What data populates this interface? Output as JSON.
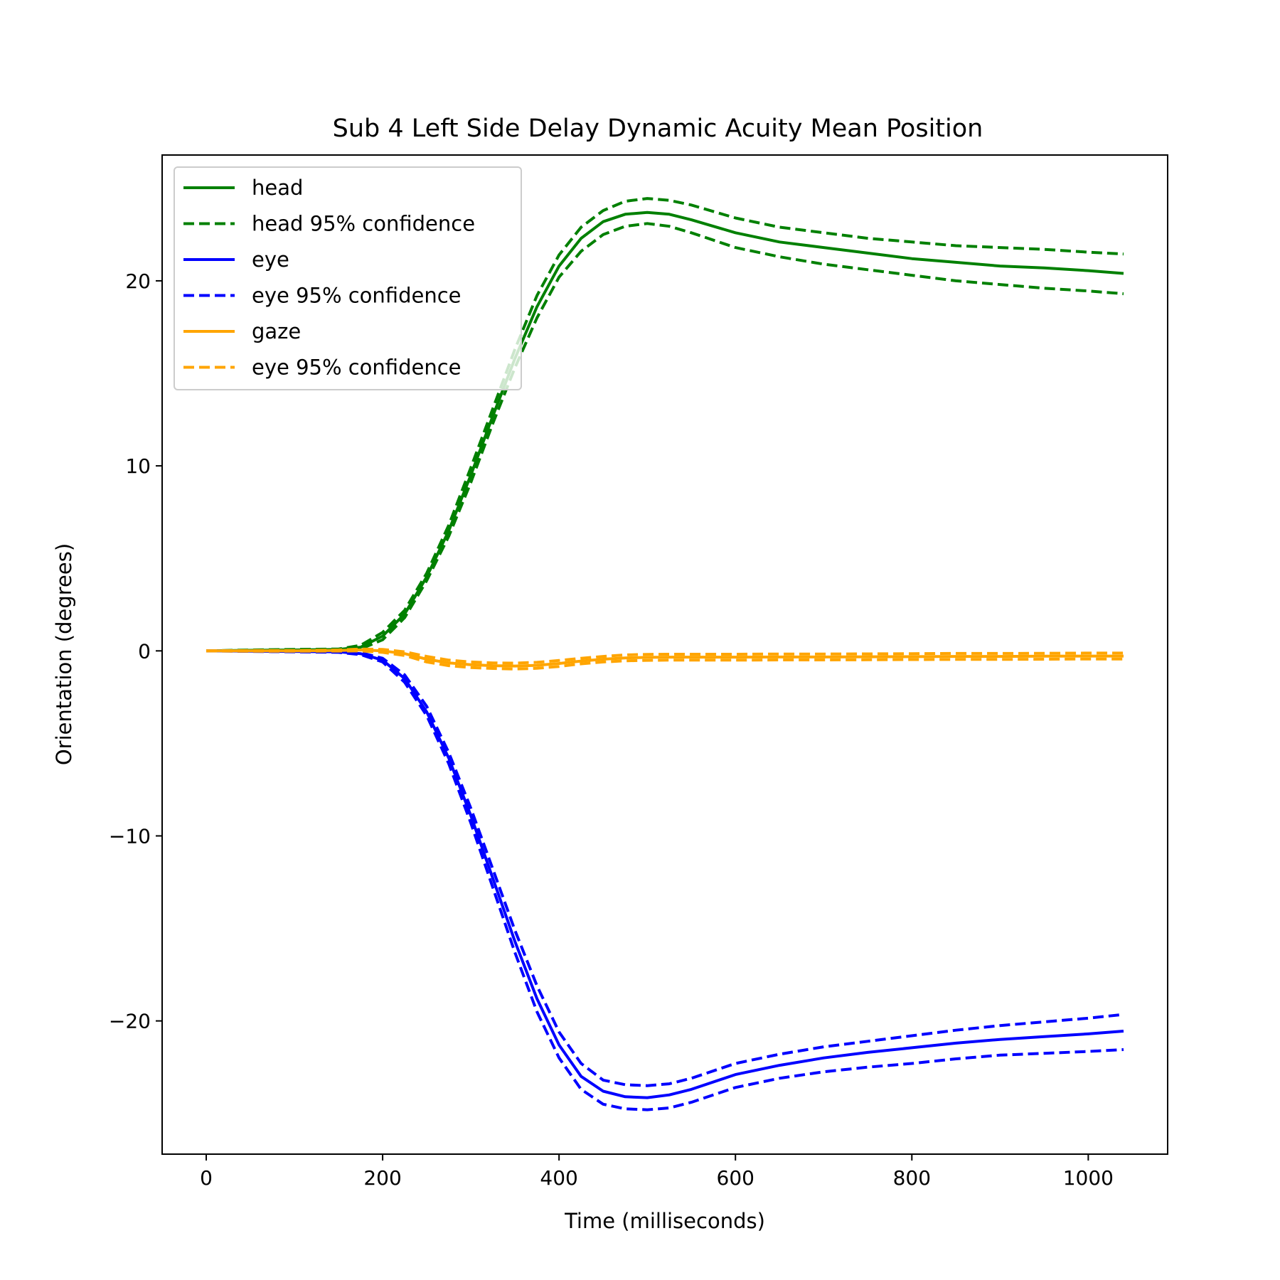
{
  "chart_data": {
    "type": "line",
    "title": "Sub 4 Left Side Delay Dynamic Acuity Mean Position",
    "xlabel": "Time (milliseconds)",
    "ylabel": "Orientation (degrees)",
    "xlim": [
      -50,
      1090
    ],
    "ylim": [
      -27.2,
      26.8
    ],
    "xticks": [
      0,
      200,
      400,
      600,
      800,
      1000
    ],
    "yticks": [
      -20,
      -10,
      0,
      10,
      20
    ],
    "xtick_labels": [
      "0",
      "200",
      "400",
      "600",
      "800",
      "1000"
    ],
    "ytick_labels": [
      "−20",
      "−10",
      "0",
      "10",
      "20"
    ],
    "grid": false,
    "legend_position": "upper-left",
    "x": [
      0,
      50,
      100,
      150,
      175,
      200,
      225,
      250,
      275,
      300,
      325,
      350,
      375,
      400,
      425,
      450,
      475,
      500,
      525,
      550,
      600,
      650,
      700,
      750,
      800,
      850,
      900,
      950,
      1000,
      1040
    ],
    "series": [
      {
        "name": "head",
        "color": "#008000",
        "style": "solid",
        "values": [
          0,
          0.03,
          0.05,
          0.08,
          0.2,
          0.8,
          2.0,
          4.0,
          6.5,
          9.5,
          12.7,
          15.8,
          18.6,
          20.8,
          22.3,
          23.2,
          23.6,
          23.7,
          23.6,
          23.3,
          22.6,
          22.1,
          21.8,
          21.5,
          21.2,
          21.0,
          20.8,
          20.7,
          20.55,
          20.4
        ]
      },
      {
        "name": "head 95% confidence",
        "color": "#008000",
        "style": "dashed",
        "values": [
          0,
          0.05,
          0.08,
          0.1,
          0.3,
          1.0,
          2.2,
          4.2,
          6.8,
          9.9,
          13.1,
          16.3,
          19.2,
          21.4,
          22.9,
          23.8,
          24.3,
          24.45,
          24.35,
          24.1,
          23.4,
          22.9,
          22.6,
          22.3,
          22.1,
          21.9,
          21.8,
          21.7,
          21.55,
          21.45
        ]
      },
      {
        "name": "head 95% confidence (lower)",
        "color": "#008000",
        "style": "dashed",
        "values": [
          0,
          0.0,
          0.02,
          0.05,
          0.1,
          0.6,
          1.8,
          3.8,
          6.2,
          9.1,
          12.3,
          15.3,
          18.0,
          20.2,
          21.6,
          22.5,
          22.95,
          23.1,
          22.95,
          22.6,
          21.8,
          21.3,
          20.9,
          20.6,
          20.3,
          20.0,
          19.8,
          19.6,
          19.45,
          19.3
        ]
      },
      {
        "name": "eye",
        "color": "#0000ff",
        "style": "solid",
        "values": [
          0,
          -0.02,
          -0.03,
          -0.05,
          -0.15,
          -0.5,
          -1.5,
          -3.3,
          -5.8,
          -8.9,
          -12.3,
          -15.7,
          -18.8,
          -21.3,
          -23.0,
          -23.8,
          -24.1,
          -24.15,
          -24.0,
          -23.7,
          -22.9,
          -22.4,
          -22.0,
          -21.7,
          -21.45,
          -21.2,
          -21.0,
          -20.85,
          -20.7,
          -20.55
        ]
      },
      {
        "name": "eye 95% confidence",
        "color": "#0000ff",
        "style": "dashed",
        "values": [
          0,
          0.0,
          0.0,
          -0.02,
          -0.1,
          -0.4,
          -1.3,
          -3.0,
          -5.5,
          -8.5,
          -11.8,
          -15.1,
          -18.1,
          -20.6,
          -22.3,
          -23.2,
          -23.45,
          -23.5,
          -23.4,
          -23.1,
          -22.3,
          -21.8,
          -21.4,
          -21.1,
          -20.8,
          -20.5,
          -20.25,
          -20.05,
          -19.85,
          -19.65
        ]
      },
      {
        "name": "eye 95% confidence (lower)",
        "color": "#0000ff",
        "style": "dashed",
        "values": [
          0,
          -0.03,
          -0.05,
          -0.08,
          -0.2,
          -0.6,
          -1.7,
          -3.5,
          -6.1,
          -9.3,
          -12.8,
          -16.3,
          -19.5,
          -22.0,
          -23.7,
          -24.5,
          -24.75,
          -24.8,
          -24.7,
          -24.4,
          -23.6,
          -23.1,
          -22.75,
          -22.5,
          -22.3,
          -22.05,
          -21.85,
          -21.75,
          -21.65,
          -21.55
        ]
      },
      {
        "name": "gaze",
        "color": "#ffa500",
        "style": "solid",
        "values": [
          0,
          0.0,
          0.0,
          0.02,
          0.05,
          0.0,
          -0.15,
          -0.45,
          -0.65,
          -0.75,
          -0.8,
          -0.82,
          -0.78,
          -0.68,
          -0.55,
          -0.45,
          -0.38,
          -0.35,
          -0.34,
          -0.34,
          -0.34,
          -0.33,
          -0.33,
          -0.32,
          -0.31,
          -0.3,
          -0.3,
          -0.29,
          -0.28,
          -0.28
        ]
      },
      {
        "name": "eye 95% confidence",
        "color": "#ffa500",
        "style": "dashed",
        "values": [
          0,
          0.02,
          0.02,
          0.05,
          0.1,
          0.08,
          -0.05,
          -0.3,
          -0.5,
          -0.6,
          -0.65,
          -0.66,
          -0.62,
          -0.52,
          -0.4,
          -0.3,
          -0.22,
          -0.19,
          -0.18,
          -0.18,
          -0.18,
          -0.17,
          -0.17,
          -0.16,
          -0.15,
          -0.14,
          -0.14,
          -0.13,
          -0.12,
          -0.12
        ]
      },
      {
        "name": "eye 95% confidence (lower)",
        "color": "#ffa500",
        "style": "dashed",
        "values": [
          0,
          -0.02,
          -0.02,
          -0.01,
          0.0,
          -0.08,
          -0.25,
          -0.6,
          -0.8,
          -0.9,
          -0.95,
          -0.98,
          -0.94,
          -0.84,
          -0.7,
          -0.6,
          -0.54,
          -0.51,
          -0.5,
          -0.5,
          -0.5,
          -0.49,
          -0.49,
          -0.48,
          -0.47,
          -0.46,
          -0.46,
          -0.45,
          -0.44,
          -0.44
        ]
      }
    ],
    "legend": [
      {
        "label": "head",
        "color": "#008000",
        "style": "solid"
      },
      {
        "label": "head 95% confidence",
        "color": "#008000",
        "style": "dashed"
      },
      {
        "label": "eye",
        "color": "#0000ff",
        "style": "solid"
      },
      {
        "label": "eye 95% confidence",
        "color": "#0000ff",
        "style": "dashed"
      },
      {
        "label": "gaze",
        "color": "#ffa500",
        "style": "solid"
      },
      {
        "label": "eye 95% confidence",
        "color": "#ffa500",
        "style": "dashed"
      }
    ]
  }
}
